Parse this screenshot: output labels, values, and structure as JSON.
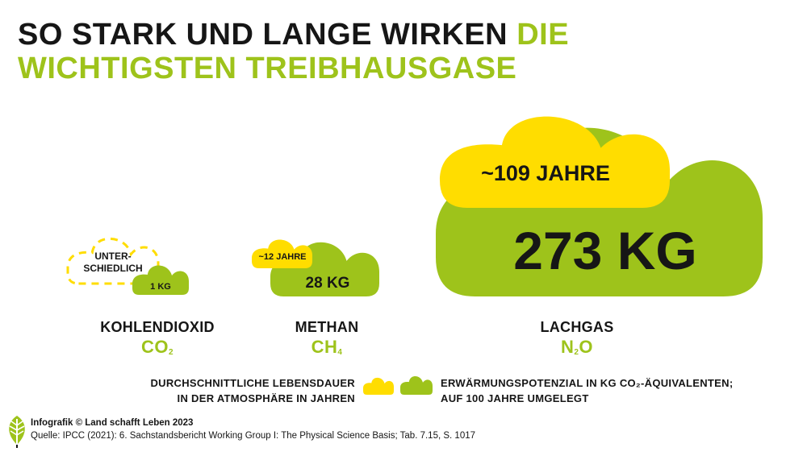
{
  "title": {
    "part1": "SO STARK UND LANGE WIRKEN",
    "part2": "DIE WICHTIGSTEN TREIBHAUSGASE"
  },
  "colors": {
    "yellow": "#ffdd00",
    "green": "#9ec31b",
    "dark": "#161616"
  },
  "chart_data": {
    "type": "bar",
    "title": "SO STARK UND LANGE WIRKEN DIE WICHTIGSTEN TREIBHAUSGASE",
    "categories": [
      "KOHLENDIOXID",
      "METHAN",
      "LACHGAS"
    ],
    "formulas": [
      {
        "base": [
          "CO"
        ],
        "sub": [
          "2"
        ]
      },
      {
        "base": [
          "CH"
        ],
        "sub": [
          "4"
        ]
      },
      {
        "base": [
          "N",
          "O"
        ],
        "sub": [
          "2",
          ""
        ]
      }
    ],
    "series": [
      {
        "name": "DURCHSCHNITTLICHE LEBENSDAUER IN DER ATMOSPHÄRE IN JAHREN",
        "color": "#ffdd00",
        "values": [
          null,
          12,
          109
        ],
        "labels": [
          "UNTER-SCHIEDLICH",
          "~12 JAHRE",
          "~109 JAHRE"
        ]
      },
      {
        "name": "ERWÄRMUNGSPOTENZIAL IN KG CO₂-ÄQUIVALENTEN; AUF 100 JAHRE UMGELEGT",
        "color": "#9ec31b",
        "values": [
          1,
          28,
          273
        ],
        "labels": [
          "1 KG",
          "28 KG",
          "273 KG"
        ]
      }
    ],
    "legend": {
      "position": "bottom",
      "lifetime_lines": [
        "DURCHSCHNITTLICHE LEBENSDAUER",
        "IN DER ATMOSPHÄRE IN JAHREN"
      ],
      "gwp_lines": [
        "ERWÄRMUNGSPOTENZIAL IN KG CO₂-ÄQUIVALENTEN;",
        "AUF 100 JAHRE UMGELEGT"
      ]
    }
  },
  "footer": {
    "credit": "Infografik © Land schafft Leben 2023",
    "source": "Quelle: IPCC (2021): 6. Sachstandsbericht Working Group I: The Physical Science Basis; Tab. 7.15, S. 1017"
  }
}
